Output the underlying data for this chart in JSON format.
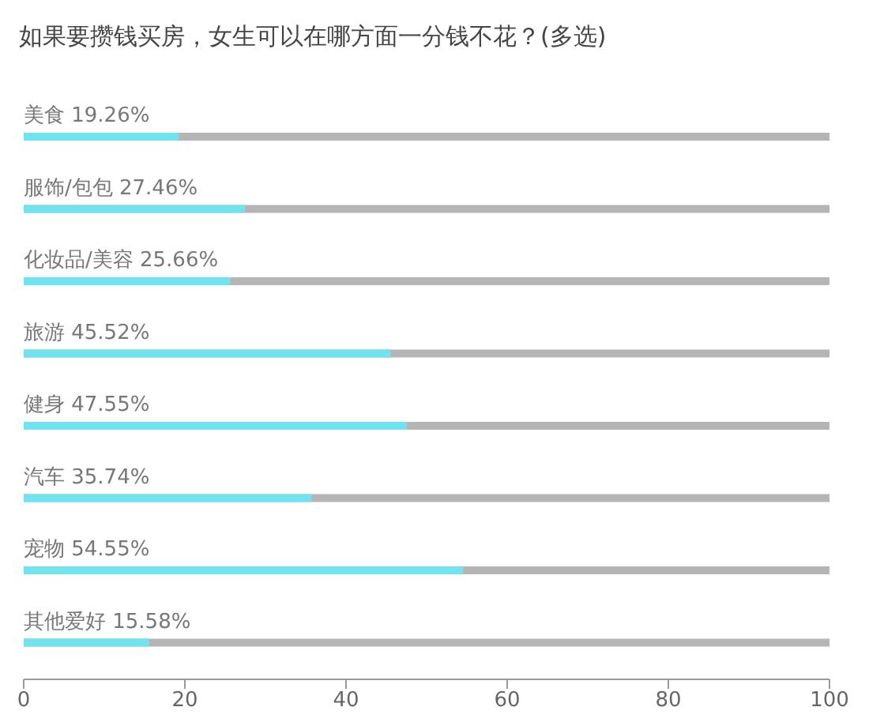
{
  "chart_data": {
    "type": "bar",
    "orientation": "horizontal",
    "title": "如果要攒钱买房，女生可以在哪方面一分钱不花？(多选)",
    "categories": [
      "美食",
      "服饰/包包",
      "化妆品/美容",
      "旅游",
      "健身",
      "汽车",
      "宠物",
      "其他爱好"
    ],
    "values": [
      19.26,
      27.46,
      25.66,
      45.52,
      47.55,
      35.74,
      54.55,
      15.58
    ],
    "value_labels": [
      "19.26%",
      "27.46%",
      "25.66%",
      "45.52%",
      "47.55%",
      "35.74%",
      "54.55%",
      "15.58%"
    ],
    "color": "#6fe3ef",
    "xlim": [
      0,
      100
    ],
    "xticks": [
      0,
      20,
      40,
      60,
      80,
      100
    ],
    "grid": false,
    "legend": false
  }
}
